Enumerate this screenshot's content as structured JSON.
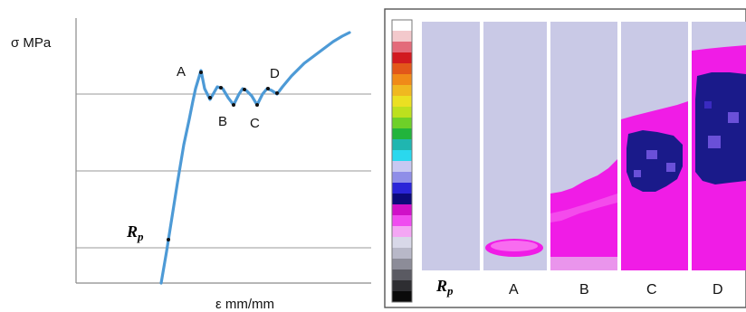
{
  "left_chart": {
    "y_axis_label": "σ MPa",
    "x_axis_label": "ε mm/mm",
    "points": [
      {
        "id": "A",
        "label": "A"
      },
      {
        "id": "B",
        "label": "B"
      },
      {
        "id": "C",
        "label": "C"
      },
      {
        "id": "D",
        "label": "D"
      },
      {
        "id": "Rp",
        "label": "R",
        "subscript": "p"
      }
    ]
  },
  "right_panel": {
    "panels": [
      {
        "id": "Rp",
        "label": "R",
        "subscript": "p"
      },
      {
        "id": "A",
        "label": "A"
      },
      {
        "id": "B",
        "label": "B"
      },
      {
        "id": "C",
        "label": "C"
      },
      {
        "id": "D",
        "label": "D"
      }
    ],
    "scale_colors": [
      "#ffffff",
      "#f3c9cc",
      "#e36b7a",
      "#d11a20",
      "#e2571a",
      "#f08a18",
      "#f0b820",
      "#ebe022",
      "#bde01e",
      "#6ed028",
      "#22b43c",
      "#1fb6b0",
      "#2ad8ee",
      "#c8c8f2",
      "#8f8ee8",
      "#2a24d8",
      "#0c0a7a",
      "#d010c8",
      "#f04cf0",
      "#f4a6f4",
      "#d8d8e8",
      "#b8b8c8",
      "#8c8c98",
      "#5a5a62",
      "#2e2e32",
      "#0a0a0a"
    ],
    "colors": {
      "background": "#c9c9e6",
      "magenta": "#f01ce6",
      "navy": "#1a1a8a"
    }
  }
}
